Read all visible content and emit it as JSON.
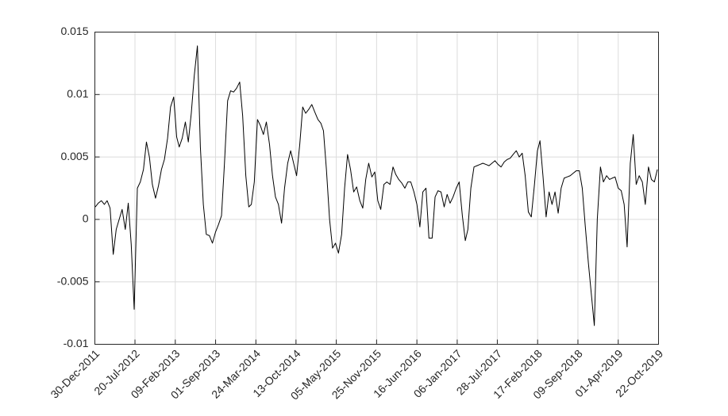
{
  "chart_data": {
    "type": "line",
    "color": "#000000",
    "grid": true,
    "x": [
      "2012-01-01",
      "2012-01-16",
      "2012-02-01",
      "2012-02-16",
      "2012-03-01",
      "2012-03-16",
      "2012-04-01",
      "2012-04-16",
      "2012-05-01",
      "2012-05-16",
      "2012-06-01",
      "2012-06-16",
      "2012-07-01",
      "2012-07-16",
      "2012-08-01",
      "2012-08-16",
      "2012-09-01",
      "2012-09-16",
      "2012-10-01",
      "2012-10-16",
      "2012-11-01",
      "2012-11-16",
      "2012-12-01",
      "2012-12-16",
      "2013-01-01",
      "2013-01-16",
      "2013-02-01",
      "2013-02-16",
      "2013-03-01",
      "2013-03-16",
      "2013-04-01",
      "2013-04-16",
      "2013-05-01",
      "2013-05-16",
      "2013-06-01",
      "2013-06-16",
      "2013-07-01",
      "2013-07-16",
      "2013-08-01",
      "2013-08-16",
      "2013-09-01",
      "2013-09-16",
      "2013-10-01",
      "2013-10-16",
      "2013-11-01",
      "2013-11-16",
      "2013-12-01",
      "2013-12-16",
      "2014-01-01",
      "2014-01-16",
      "2014-02-01",
      "2014-02-16",
      "2014-03-01",
      "2014-03-16",
      "2014-04-01",
      "2014-04-16",
      "2014-05-01",
      "2014-05-16",
      "2014-06-01",
      "2014-06-16",
      "2014-07-01",
      "2014-07-16",
      "2014-08-01",
      "2014-08-16",
      "2014-09-01",
      "2014-09-16",
      "2014-10-01",
      "2014-10-16",
      "2014-11-01",
      "2014-11-16",
      "2014-12-01",
      "2014-12-16",
      "2015-01-01",
      "2015-01-16",
      "2015-02-01",
      "2015-02-16",
      "2015-03-01",
      "2015-03-16",
      "2015-04-01",
      "2015-04-16",
      "2015-05-01",
      "2015-05-16",
      "2015-06-01",
      "2015-06-16",
      "2015-07-01",
      "2015-07-16",
      "2015-08-01",
      "2015-08-16",
      "2015-09-01",
      "2015-09-16",
      "2015-10-01",
      "2015-10-16",
      "2015-11-01",
      "2015-11-16",
      "2015-12-01",
      "2015-12-16",
      "2016-01-01",
      "2016-01-16",
      "2016-02-01",
      "2016-02-16",
      "2016-03-01",
      "2016-03-16",
      "2016-04-01",
      "2016-04-16",
      "2016-05-01",
      "2016-05-16",
      "2016-06-01",
      "2016-06-16",
      "2016-07-01",
      "2016-07-16",
      "2016-08-01",
      "2016-08-16",
      "2016-09-01",
      "2016-09-16",
      "2016-10-01",
      "2016-10-16",
      "2016-11-01",
      "2016-11-16",
      "2016-12-01",
      "2016-12-16",
      "2017-01-01",
      "2017-01-16",
      "2017-02-01",
      "2017-02-16",
      "2017-03-01",
      "2017-03-16",
      "2017-04-01",
      "2017-04-16",
      "2017-05-01",
      "2017-05-16",
      "2017-06-01",
      "2017-06-16",
      "2017-07-01",
      "2017-07-16",
      "2017-08-01",
      "2017-08-16",
      "2017-09-01",
      "2017-09-16",
      "2017-10-01",
      "2017-10-16",
      "2017-11-01",
      "2017-11-16",
      "2017-12-01",
      "2017-12-16",
      "2018-01-01",
      "2018-01-16",
      "2018-02-01",
      "2018-02-16",
      "2018-03-01",
      "2018-03-16",
      "2018-04-01",
      "2018-04-16",
      "2018-05-01",
      "2018-05-16",
      "2018-06-01",
      "2018-06-16",
      "2018-07-01",
      "2018-07-16",
      "2018-08-01",
      "2018-08-16",
      "2018-09-01",
      "2018-09-16",
      "2018-10-01",
      "2018-10-16",
      "2018-11-01",
      "2018-11-16",
      "2018-12-01",
      "2018-12-16",
      "2019-01-01",
      "2019-01-16",
      "2019-02-01",
      "2019-02-16",
      "2019-03-01",
      "2019-03-16",
      "2019-04-01",
      "2019-04-16",
      "2019-05-01",
      "2019-05-16",
      "2019-06-01",
      "2019-06-16",
      "2019-07-01",
      "2019-07-16",
      "2019-08-01",
      "2019-08-16",
      "2019-09-01",
      "2019-09-16",
      "2019-10-01",
      "2019-10-16"
    ],
    "values": [
      0.001,
      0.0013,
      0.0015,
      0.0012,
      0.0015,
      0.0009,
      -0.0028,
      -0.0008,
      0,
      0.0008,
      -0.0008,
      0.0013,
      -0.002,
      -0.0072,
      0.0025,
      0.003,
      0.004,
      0.0062,
      0.005,
      0.0028,
      0.0017,
      0.0027,
      0.004,
      0.0048,
      0.0065,
      0.009,
      0.0098,
      0.0066,
      0.0058,
      0.0065,
      0.0078,
      0.0062,
      0.0085,
      0.0115,
      0.0139,
      0.0058,
      0.0012,
      -0.0012,
      -0.0013,
      -0.0019,
      -0.001,
      -0.0004,
      0.0003,
      0.0045,
      0.0095,
      0.0103,
      0.0102,
      0.0105,
      0.011,
      0.0083,
      0.0035,
      0.001,
      0.0012,
      0.003,
      0.008,
      0.0075,
      0.0068,
      0.0078,
      0.006,
      0.0035,
      0.0018,
      0.0012,
      -0.0003,
      0.0025,
      0.0045,
      0.0055,
      0.0045,
      0.0035,
      0.006,
      0.009,
      0.0085,
      0.0088,
      0.0092,
      0.0086,
      0.008,
      0.0077,
      0.0071,
      0.004,
      0,
      -0.0023,
      -0.0019,
      -0.0027,
      -0.0012,
      0.0025,
      0.0052,
      0.004,
      0.0022,
      0.0026,
      0.0015,
      0.0009,
      0.0032,
      0.0045,
      0.0034,
      0.0038,
      0.0015,
      0.0008,
      0.0028,
      0.003,
      0.0028,
      0.0042,
      0.0036,
      0.0032,
      0.0029,
      0.0025,
      0.003,
      0.003,
      0.0022,
      0.0012,
      -0.0006,
      0.0022,
      0.0025,
      -0.0015,
      -0.0015,
      0.0018,
      0.0023,
      0.0022,
      0.001,
      0.002,
      0.0013,
      0.0018,
      0.0025,
      0.003,
      0.0003,
      -0.0017,
      -0.0008,
      0.0025,
      0.0042,
      0.0043,
      0.0044,
      0.0045,
      0.0044,
      0.0043,
      0.0045,
      0.0047,
      0.0044,
      0.0042,
      0.0046,
      0.0048,
      0.0049,
      0.0052,
      0.0055,
      0.005,
      0.0053,
      0.0035,
      0.0006,
      0.0002,
      0.0028,
      0.0055,
      0.0063,
      0.0035,
      0.0002,
      0.0022,
      0.0012,
      0.0022,
      0.0005,
      0.0025,
      0.0033,
      0.0034,
      0.0035,
      0.0037,
      0.0039,
      0.0039,
      0.0025,
      -0.0005,
      -0.0035,
      -0.006,
      -0.0085,
      0,
      0.0042,
      0.003,
      0.0035,
      0.0032,
      0.0033,
      0.0034,
      0.0025,
      0.0023,
      0.0012,
      -0.0022,
      0.0045,
      0.0068,
      0.0028,
      0.0035,
      0.003,
      0.0012,
      0.0042,
      0.0032,
      0.003,
      0.004
    ],
    "xlim": [
      "2011-12-30",
      "2019-10-22"
    ],
    "xticks": [
      {
        "value": "2011-12-30",
        "label": "30-Dec-2011"
      },
      {
        "value": "2012-07-20",
        "label": "20-Jul-2012"
      },
      {
        "value": "2013-02-09",
        "label": "09-Feb-2013"
      },
      {
        "value": "2013-09-01",
        "label": "01-Sep-2013"
      },
      {
        "value": "2014-03-24",
        "label": "24-Mar-2014"
      },
      {
        "value": "2014-10-13",
        "label": "13-Oct-2014"
      },
      {
        "value": "2015-05-05",
        "label": "05-May-2015"
      },
      {
        "value": "2015-11-25",
        "label": "25-Nov-2015"
      },
      {
        "value": "2016-06-16",
        "label": "16-Jun-2016"
      },
      {
        "value": "2017-01-06",
        "label": "06-Jan-2017"
      },
      {
        "value": "2017-07-28",
        "label": "28-Jul-2017"
      },
      {
        "value": "2018-02-17",
        "label": "17-Feb-2018"
      },
      {
        "value": "2018-09-09",
        "label": "09-Sep-2018"
      },
      {
        "value": "2019-04-01",
        "label": "01-Apr-2019"
      },
      {
        "value": "2019-10-22",
        "label": "22-Oct-2019"
      }
    ],
    "ylim": [
      -0.01,
      0.015
    ],
    "yticks": [
      -0.01,
      -0.005,
      0,
      0.005,
      0.01,
      0.015
    ]
  }
}
